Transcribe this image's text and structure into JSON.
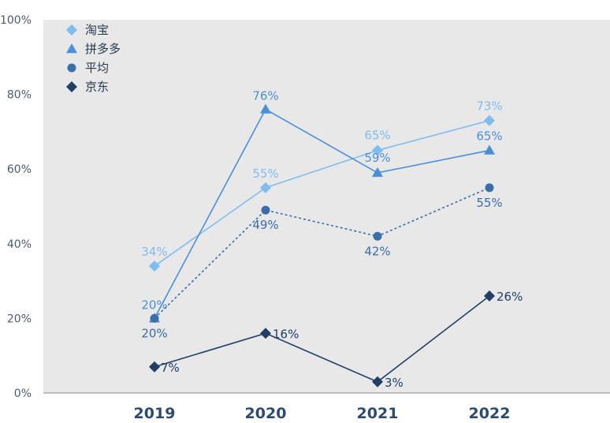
{
  "chart_data": {
    "type": "line",
    "categories": [
      "2019",
      "2020",
      "2021",
      "2022"
    ],
    "ylim": [
      0,
      100
    ],
    "yticks": [
      "0%",
      "20%",
      "40%",
      "60%",
      "80%",
      "100%"
    ],
    "grid": false,
    "legend_position": "top-left",
    "series": [
      {
        "name": "淘宝",
        "values": [
          34,
          55,
          65,
          73
        ],
        "labels": [
          "34%",
          "55%",
          "65%",
          "73%"
        ],
        "color": "#7fbdf0",
        "marker": "diamond",
        "line": "solid"
      },
      {
        "name": "拼多多",
        "values": [
          20,
          76,
          59,
          65
        ],
        "labels": [
          "20%",
          "76%",
          "59%",
          "65%"
        ],
        "color": "#4a90d9",
        "marker": "triangle",
        "line": "solid"
      },
      {
        "name": "平均",
        "values": [
          20,
          49,
          42,
          55
        ],
        "labels": [
          "20%",
          "49%",
          "42%",
          "55%"
        ],
        "color": "#3a6ea8",
        "marker": "circle",
        "line": "dotted"
      },
      {
        "name": "京东",
        "values": [
          7,
          16,
          3,
          26
        ],
        "labels": [
          "7%",
          "16%",
          "3%",
          "26%"
        ],
        "color": "#1f3f66",
        "marker": "diamond",
        "line": "solid"
      }
    ]
  },
  "colors": {
    "plot_background": "#e8e8e8",
    "axis": "#8a8a8a"
  }
}
